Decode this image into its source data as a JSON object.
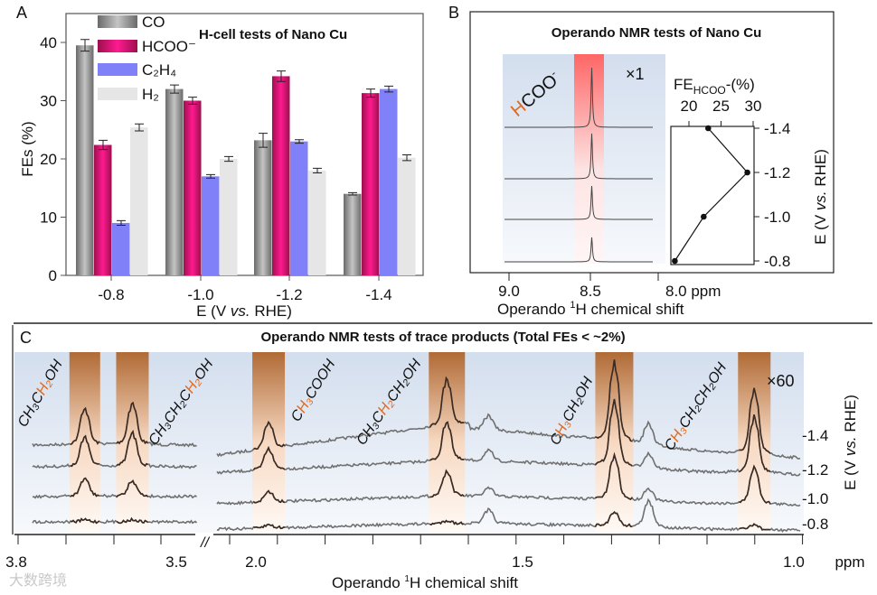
{
  "panel_letters": {
    "a": "A",
    "b": "B",
    "c": "C"
  },
  "watermark": "大数跨境",
  "colors": {
    "co": "#8a8a8a",
    "hcoo": "#c0105f",
    "c2h4": "#8080f8",
    "h2": "#e6e6e6",
    "band_brown": "#b36a34",
    "band_red": "#f66",
    "highlight": "#e06a1e"
  },
  "chart_data": [
    {
      "panel": "A",
      "type": "bar",
      "title": "H-cell tests of Nano Cu",
      "xlabel_parts": {
        "pre": "E (V ",
        "it": "vs.",
        "post": " RHE)"
      },
      "ylabel": "FEs (%)",
      "ylim": [
        0,
        45
      ],
      "yticks": [
        "0",
        "10",
        "20",
        "30",
        "40"
      ],
      "yticks_values": [
        0,
        10,
        20,
        30,
        40
      ],
      "categories": [
        "-0.8",
        "-1.0",
        "-1.2",
        "-1.4"
      ],
      "legend_position": "top-left",
      "series": [
        {
          "name": "CO",
          "values": [
            39.5,
            32.0,
            23.2,
            14.0
          ],
          "errors": [
            1.0,
            0.7,
            1.2,
            0.2
          ]
        },
        {
          "name": "HCOO⁻",
          "values": [
            22.4,
            30.0,
            34.2,
            31.3
          ],
          "errors": [
            0.8,
            0.6,
            0.9,
            0.7
          ]
        },
        {
          "name": "C₂H₄",
          "values": [
            9.0,
            17.0,
            23.0,
            32.0
          ],
          "errors": [
            0.4,
            0.3,
            0.3,
            0.5
          ]
        },
        {
          "name": "H₂",
          "values": [
            25.4,
            20.0,
            18.0,
            20.2
          ],
          "errors": [
            0.6,
            0.4,
            0.4,
            0.5
          ]
        }
      ]
    },
    {
      "panel": "B",
      "type": "line",
      "title": "Operando NMR tests of Nano Cu",
      "xlabel_parts": {
        "pre": "Operando ",
        "sup": "1",
        "post": "H chemical shift"
      },
      "xticks": [
        "9.0",
        "8.5",
        "8.0 ppm"
      ],
      "xticks_values": [
        9.0,
        8.5,
        8.0
      ],
      "species_label": {
        "hl": "H",
        "rest": "COO",
        "sup": "-"
      },
      "scale_label": "×1",
      "spectra": {
        "potentials": [
          -1.4,
          -1.2,
          -1.0,
          -0.8
        ],
        "peak_ppm": 8.49,
        "relative_intensity": [
          1.0,
          0.76,
          0.56,
          0.41
        ]
      },
      "inset": {
        "xlabel_parts": {
          "pre": "FE",
          "sub": "HCOO",
          "post": "-(%)"
        },
        "xticks": [
          "20",
          "25",
          "30"
        ],
        "xticks_values": [
          20,
          25,
          30
        ],
        "xlim": [
          17.5,
          29.7
        ],
        "ylabel_parts": {
          "pre": "E (V ",
          "it": "vs.",
          "post": " RHE)"
        },
        "yticks": [
          "-1.4",
          "-1.2",
          "-1.0",
          "-0.8"
        ],
        "yticks_values": [
          -1.4,
          -1.2,
          -1.0,
          -0.8
        ],
        "points": [
          {
            "e": -1.4,
            "fe": 23.0
          },
          {
            "e": -1.2,
            "fe": 29.1
          },
          {
            "e": -1.0,
            "fe": 22.3
          },
          {
            "e": -0.8,
            "fe": 17.8
          }
        ]
      }
    },
    {
      "panel": "C",
      "type": "line",
      "title": "Operando NMR tests of trace products (Total FEs < ~2%)",
      "xlabel_parts": {
        "pre": "Operando ",
        "sup": "1",
        "post": "H chemical shift"
      },
      "xticks": [
        "3.8",
        "3.5",
        "2.0",
        "1.5",
        "1.0",
        "ppm"
      ],
      "axis_break": "//",
      "scale_label": "×60",
      "ylabel_parts": {
        "pre": "E (V ",
        "it": "vs.",
        "post": " RHE)"
      },
      "potentials": [
        "-1.4",
        "-1.2",
        "-1.0",
        "-0.8"
      ],
      "labels": [
        {
          "pre": "CH₃C",
          "hl": "H₂",
          "post": "OH"
        },
        {
          "pre": "CH₃CH₂C",
          "hl": "H₂",
          "post": "OH"
        },
        {
          "pre": "C",
          "hl": "H₃",
          "post": "COOH"
        },
        {
          "pre": "CH₃C",
          "hl": "H₂",
          "post": "CH₂OH"
        },
        {
          "pre": "C",
          "hl": "H₃",
          "post": "CH₂OH"
        },
        {
          "pre": "C",
          "hl": "H₃",
          "post": "CH₂CH₂OH"
        }
      ],
      "peaks": [
        {
          "ppm": 3.66,
          "intensity": [
            35,
            28,
            17,
            2
          ],
          "highlighted": true
        },
        {
          "ppm": 3.56,
          "intensity": [
            40,
            32,
            15,
            2
          ],
          "highlighted": true
        },
        {
          "ppm": 1.935,
          "intensity": [
            25,
            20,
            10,
            3
          ],
          "highlighted": true
        },
        {
          "ppm": 1.623,
          "intensity": [
            45,
            38,
            24,
            3
          ],
          "highlighted": true
        },
        {
          "ppm": 1.33,
          "intensity": [
            75,
            62,
            42,
            14
          ],
          "highlighted": true
        },
        {
          "ppm": 1.085,
          "intensity": [
            62,
            55,
            35,
            5
          ],
          "highlighted": true
        },
        {
          "ppm": 1.55,
          "intensity": [
            14,
            10,
            8,
            13
          ],
          "highlighted": false
        },
        {
          "ppm": 1.27,
          "intensity": [
            20,
            14,
            12,
            25
          ],
          "highlighted": false
        }
      ]
    }
  ]
}
